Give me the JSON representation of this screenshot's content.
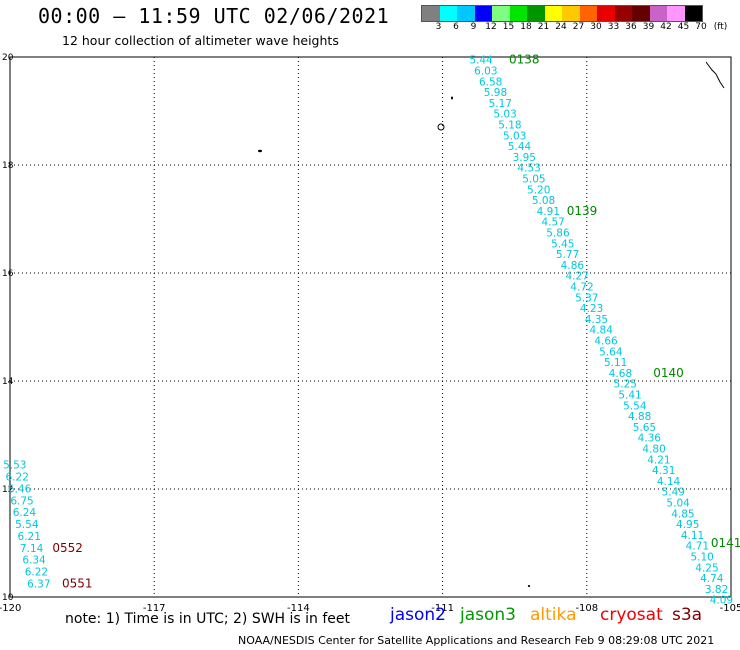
{
  "header": {
    "title": "00:00 – 11:59 UTC 02/06/2021",
    "subtitle": "12 hour collection of altimeter wave heights"
  },
  "legend": {
    "colors": [
      "#808080",
      "#00ffff",
      "#00c8ff",
      "#0000ff",
      "#7fff7f",
      "#00e600",
      "#009600",
      "#ffff00",
      "#ffc800",
      "#ff6400",
      "#e60000",
      "#960000",
      "#640000",
      "#c864c8",
      "#ff96ff",
      "#000000"
    ],
    "tick_labels": [
      "3",
      "6",
      "9",
      "12",
      "15",
      "18",
      "21",
      "24",
      "27",
      "30",
      "33",
      "36",
      "39",
      "42",
      "45",
      "70",
      "(ft)"
    ]
  },
  "footer": {
    "note": "note:  1) Time is in UTC;  2) SWH is in feet",
    "satellites": [
      {
        "name": "jason2",
        "color": "#0000ff"
      },
      {
        "name": "jason3",
        "color": "#009900"
      },
      {
        "name": "altika",
        "color": "#ff9900"
      },
      {
        "name": "cryosat",
        "color": "#ee0000"
      },
      {
        "name": "s3a",
        "color": "#800000"
      }
    ],
    "credit": "NOAA/NESDIS Center for Satellite Applications and Research    Feb  9 08:29:08 UTC 2021"
  },
  "chart_data": {
    "type": "scatter",
    "title": "",
    "xlabel": "",
    "ylabel": "",
    "xlim": [
      -120,
      -105
    ],
    "ylim": [
      10,
      20
    ],
    "grid": true,
    "x_ticks": [
      "-120",
      "-117",
      "-114",
      "-111",
      "-108",
      "-105"
    ],
    "y_ticks": [
      "10",
      "12",
      "14",
      "16",
      "18",
      "20"
    ],
    "colors": {
      "swh_label": "#00c8dc",
      "pass_jason3": "#008800",
      "pass_s3a": "#800000"
    },
    "series": [
      {
        "track": "east",
        "points": [
          {
            "lon": -110.2,
            "lat": 19.95,
            "swh": "5.44"
          },
          {
            "lon": -110.1,
            "lat": 19.75,
            "swh": "6.03"
          },
          {
            "lon": -110.0,
            "lat": 19.55,
            "swh": "6.58"
          },
          {
            "lon": -109.9,
            "lat": 19.35,
            "swh": "5.98"
          },
          {
            "lon": -109.8,
            "lat": 19.15,
            "swh": "5.17"
          },
          {
            "lon": -109.7,
            "lat": 18.95,
            "swh": "5.03"
          },
          {
            "lon": -109.6,
            "lat": 18.75,
            "swh": "5.18"
          },
          {
            "lon": -109.5,
            "lat": 18.55,
            "swh": "5.03"
          },
          {
            "lon": -109.4,
            "lat": 18.35,
            "swh": "5.44"
          },
          {
            "lon": -109.3,
            "lat": 18.15,
            "swh": "3.95"
          },
          {
            "lon": -109.2,
            "lat": 17.95,
            "swh": "4.53"
          },
          {
            "lon": -109.1,
            "lat": 17.75,
            "swh": "5.05"
          },
          {
            "lon": -109.0,
            "lat": 17.55,
            "swh": "5.20"
          },
          {
            "lon": -108.9,
            "lat": 17.35,
            "swh": "5.08"
          },
          {
            "lon": -108.8,
            "lat": 17.15,
            "swh": "4.91"
          },
          {
            "lon": -108.7,
            "lat": 16.95,
            "swh": "4.57"
          },
          {
            "lon": -108.6,
            "lat": 16.75,
            "swh": "5.86"
          },
          {
            "lon": -108.5,
            "lat": 16.55,
            "swh": "5.45"
          },
          {
            "lon": -108.4,
            "lat": 16.35,
            "swh": "5.77"
          },
          {
            "lon": -108.3,
            "lat": 16.15,
            "swh": "4.86"
          },
          {
            "lon": -108.2,
            "lat": 15.95,
            "swh": "4.27"
          },
          {
            "lon": -108.1,
            "lat": 15.75,
            "swh": "4.72"
          },
          {
            "lon": -108.0,
            "lat": 15.55,
            "swh": "5.37"
          },
          {
            "lon": -107.9,
            "lat": 15.35,
            "swh": "4.23"
          },
          {
            "lon": -107.8,
            "lat": 15.15,
            "swh": "4.35"
          },
          {
            "lon": -107.7,
            "lat": 14.95,
            "swh": "4.84"
          },
          {
            "lon": -107.6,
            "lat": 14.75,
            "swh": "4.66"
          },
          {
            "lon": -107.5,
            "lat": 14.55,
            "swh": "5.64"
          },
          {
            "lon": -107.4,
            "lat": 14.35,
            "swh": "5.11"
          },
          {
            "lon": -107.3,
            "lat": 14.15,
            "swh": "4.68"
          },
          {
            "lon": -107.2,
            "lat": 13.95,
            "swh": "5.25"
          },
          {
            "lon": -107.1,
            "lat": 13.75,
            "swh": "5.41"
          },
          {
            "lon": -107.0,
            "lat": 13.55,
            "swh": "5.54"
          },
          {
            "lon": -106.9,
            "lat": 13.35,
            "swh": "4.88"
          },
          {
            "lon": -106.8,
            "lat": 13.15,
            "swh": "5.65"
          },
          {
            "lon": -106.7,
            "lat": 12.95,
            "swh": "4.36"
          },
          {
            "lon": -106.6,
            "lat": 12.75,
            "swh": "4.80"
          },
          {
            "lon": -106.5,
            "lat": 12.55,
            "swh": "4.21"
          },
          {
            "lon": -106.4,
            "lat": 12.35,
            "swh": "4.31"
          },
          {
            "lon": -106.3,
            "lat": 12.15,
            "swh": "4.14"
          },
          {
            "lon": -106.2,
            "lat": 11.95,
            "swh": "5.49"
          },
          {
            "lon": -106.1,
            "lat": 11.75,
            "swh": "5.04"
          },
          {
            "lon": -106.0,
            "lat": 11.55,
            "swh": "4.85"
          },
          {
            "lon": -105.9,
            "lat": 11.35,
            "swh": "4.95"
          },
          {
            "lon": -105.8,
            "lat": 11.15,
            "swh": "4.11"
          },
          {
            "lon": -105.7,
            "lat": 10.95,
            "swh": "4.71"
          },
          {
            "lon": -105.6,
            "lat": 10.75,
            "swh": "5.10"
          },
          {
            "lon": -105.5,
            "lat": 10.55,
            "swh": "4.25"
          },
          {
            "lon": -105.4,
            "lat": 10.35,
            "swh": "4.74"
          },
          {
            "lon": -105.3,
            "lat": 10.15,
            "swh": "3.82"
          },
          {
            "lon": -105.2,
            "lat": 9.95,
            "swh": "4.09"
          }
        ]
      },
      {
        "track": "west",
        "points": [
          {
            "lon": -119.9,
            "lat": 12.45,
            "swh": "5.53"
          },
          {
            "lon": -119.85,
            "lat": 12.23,
            "swh": "6.22"
          },
          {
            "lon": -119.8,
            "lat": 12.01,
            "swh": "6.46"
          },
          {
            "lon": -119.75,
            "lat": 11.79,
            "swh": "6.75"
          },
          {
            "lon": -119.7,
            "lat": 11.57,
            "swh": "6.24"
          },
          {
            "lon": -119.65,
            "lat": 11.35,
            "swh": "5.54"
          },
          {
            "lon": -119.6,
            "lat": 11.13,
            "swh": "6.21"
          },
          {
            "lon": -119.55,
            "lat": 10.91,
            "swh": "7.14"
          },
          {
            "lon": -119.5,
            "lat": 10.69,
            "swh": "6.34"
          },
          {
            "lon": -119.45,
            "lat": 10.47,
            "swh": "6.22"
          },
          {
            "lon": -119.4,
            "lat": 10.25,
            "swh": "6.37"
          }
        ]
      }
    ],
    "pass_labels": [
      {
        "text": "0138",
        "lon": -109.3,
        "lat": 19.95,
        "color": "#008800"
      },
      {
        "text": "0139",
        "lon": -108.1,
        "lat": 17.15,
        "color": "#008800"
      },
      {
        "text": "0140",
        "lon": -106.3,
        "lat": 14.15,
        "color": "#008800"
      },
      {
        "text": "0141",
        "lon": -105.1,
        "lat": 11.0,
        "color": "#008800"
      },
      {
        "text": "0552",
        "lon": -118.8,
        "lat": 10.91,
        "color": "#800000"
      },
      {
        "text": "0551",
        "lon": -118.6,
        "lat": 10.25,
        "color": "#800000"
      }
    ]
  }
}
